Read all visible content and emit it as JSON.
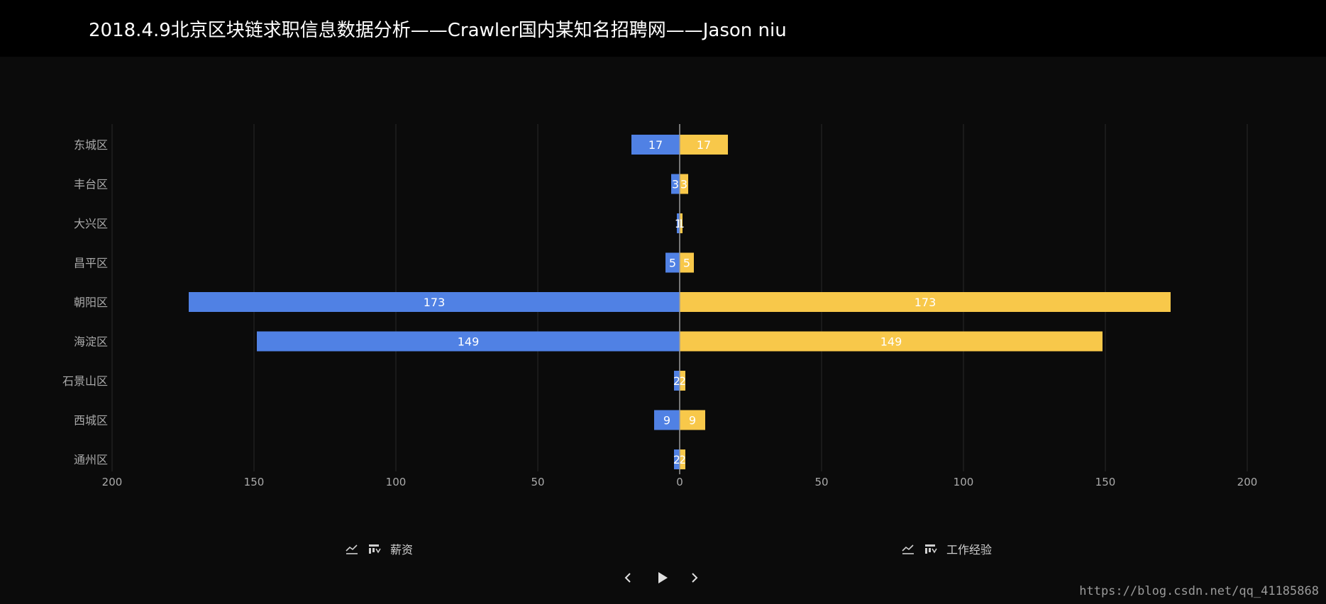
{
  "header": {
    "title": "2018.4.9北京区块链求职信息数据分析——Crawler国内某知名招聘网——Jason niu"
  },
  "colors": {
    "salary": "#5081e4",
    "experience": "#f8c84a",
    "text": "#ffffff",
    "axis_text": "#aaaaaa",
    "grid": "#2a2a2a",
    "axis_line": "#9a9a9a"
  },
  "chart_data": {
    "type": "bar",
    "orientation": "horizontal-butterfly",
    "categories": [
      "东城区",
      "丰台区",
      "大兴区",
      "昌平区",
      "朝阳区",
      "海淀区",
      "石景山区",
      "西城区",
      "通州区"
    ],
    "series": [
      {
        "name": "薪资",
        "side": "left",
        "values": [
          17,
          3,
          1,
          5,
          173,
          149,
          2,
          9,
          2
        ]
      },
      {
        "name": "工作经验",
        "side": "right",
        "values": [
          17,
          3,
          1,
          5,
          173,
          149,
          2,
          9,
          2
        ]
      }
    ],
    "xlim": [
      -200,
      200
    ],
    "x_ticks": [
      -200,
      -150,
      -100,
      -50,
      0,
      50,
      100,
      150,
      200
    ],
    "x_tick_labels": [
      "200",
      "150",
      "100",
      "50",
      "0",
      "50",
      "100",
      "150",
      "200"
    ],
    "grid": true
  },
  "legend": {
    "salary_label": "薪资",
    "experience_label": "工作经验",
    "icons": [
      "line-chart-icon",
      "sort-icon"
    ]
  },
  "timeline": {
    "prev_icon": "chevron-left-icon",
    "play_icon": "play-icon",
    "next_icon": "chevron-right-icon"
  },
  "watermark": {
    "text": "https://blog.csdn.net/qq_41185868"
  }
}
